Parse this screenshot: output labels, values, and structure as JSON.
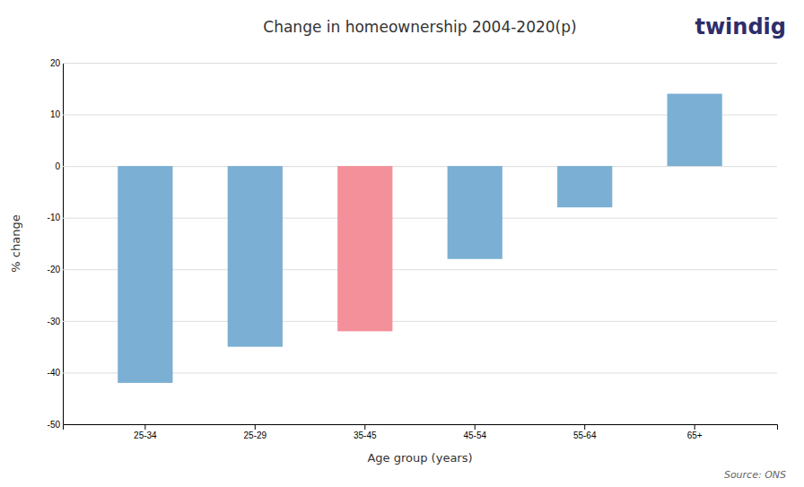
{
  "chart_data": {
    "type": "bar",
    "title": "Change in homeownership 2004-2020(p)",
    "x_label": "Age group (years)",
    "y_label": "% change",
    "categories": [
      "25-34",
      "25-29",
      "35-45",
      "45-54",
      "55-64",
      "65+"
    ],
    "values": [
      -42,
      -35,
      -32,
      -18,
      -8,
      14
    ],
    "colors": [
      "#7bafd4",
      "#7bafd4",
      "#f4909a",
      "#7bafd4",
      "#7bafd4",
      "#7bafd4"
    ],
    "ylim": [
      -50,
      20
    ],
    "yticks": [
      20,
      10,
      0,
      -10,
      -20,
      -30,
      -40,
      -50
    ],
    "grid": true,
    "annotations": [
      "Source: ONS",
      "twindig"
    ]
  }
}
